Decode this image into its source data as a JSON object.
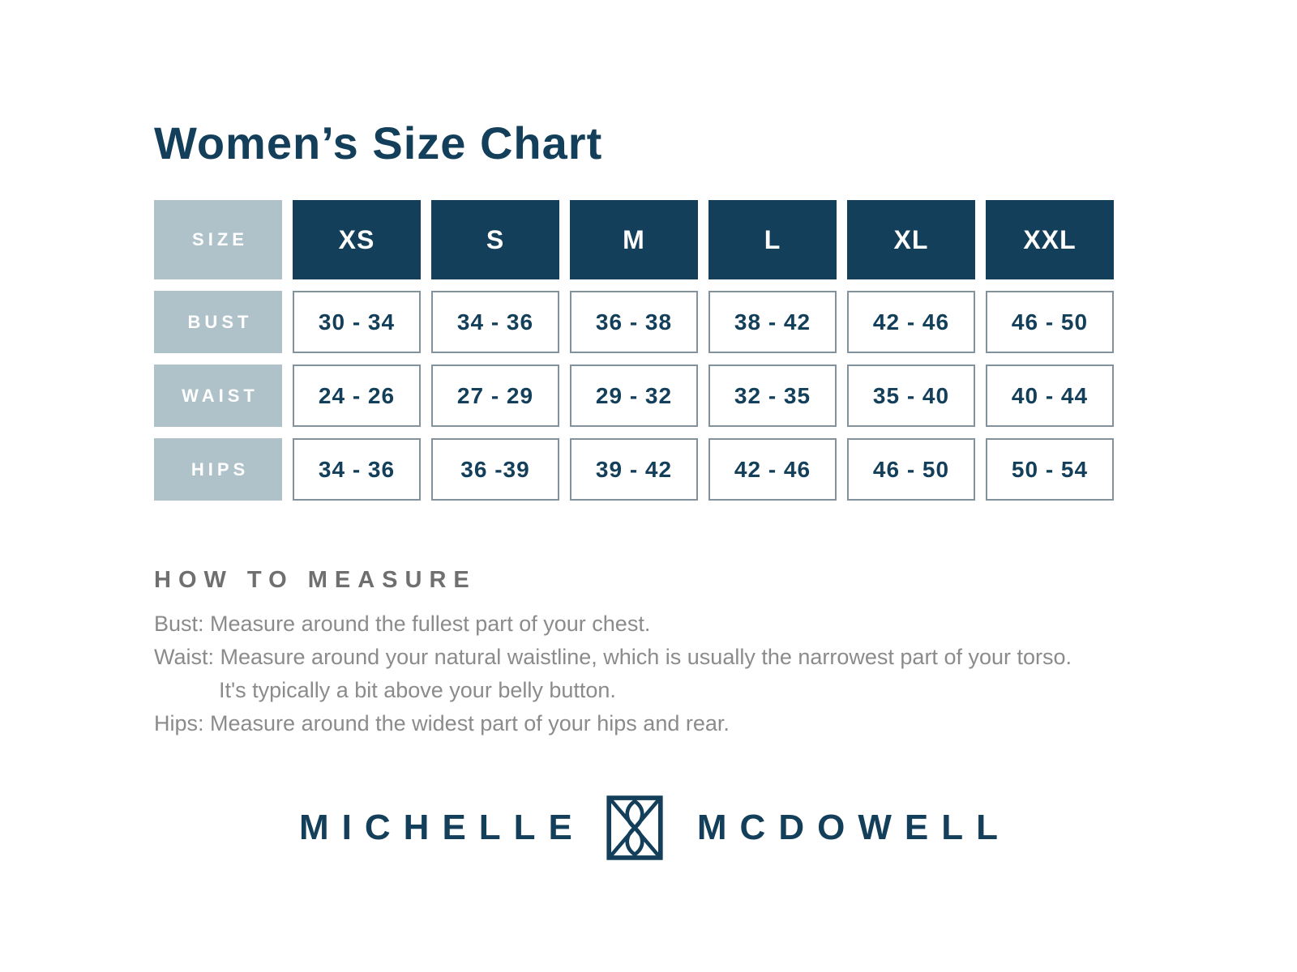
{
  "page": {
    "title": "Women’s Size Chart"
  },
  "size_chart": {
    "header_label": "SIZE",
    "sizes": [
      "XS",
      "S",
      "M",
      "L",
      "XL",
      "XXL"
    ],
    "rows": [
      {
        "label": "BUST",
        "values": [
          "30 - 34",
          "34 - 36",
          "36 - 38",
          "38 - 42",
          "42 - 46",
          "46 - 50"
        ]
      },
      {
        "label": "WAIST",
        "values": [
          "24 - 26",
          "27 - 29",
          "29 - 32",
          "32 - 35",
          "35 - 40",
          "40 - 44"
        ]
      },
      {
        "label": "HIPS",
        "values": [
          "34 - 36",
          "36 -39",
          "39 - 42",
          "42 - 46",
          "46 - 50",
          "50 - 54"
        ]
      }
    ]
  },
  "how_to_measure": {
    "heading": "HOW TO MEASURE",
    "lines": [
      {
        "text": "Bust: Measure around the fullest part of your chest.",
        "indent": false
      },
      {
        "text": "Waist: Measure around your natural waistline, which is usually the narrowest part of your torso.",
        "indent": false
      },
      {
        "text": "It's typically a bit above your belly button.",
        "indent": true
      },
      {
        "text": "Hips: Measure around the widest part of your hips and rear.",
        "indent": false
      }
    ]
  },
  "brand": {
    "name_left": "MICHELLE",
    "name_right": "MCDOWELL",
    "monogram_icon": "ribbon-monogram-icon"
  },
  "colors": {
    "navy": "#133f5a",
    "light_blue_gray": "#afc2ca",
    "cell_border": "#81929d",
    "heading_gray": "#6f6f6f",
    "body_gray": "#8b8b8b",
    "white": "#ffffff"
  }
}
